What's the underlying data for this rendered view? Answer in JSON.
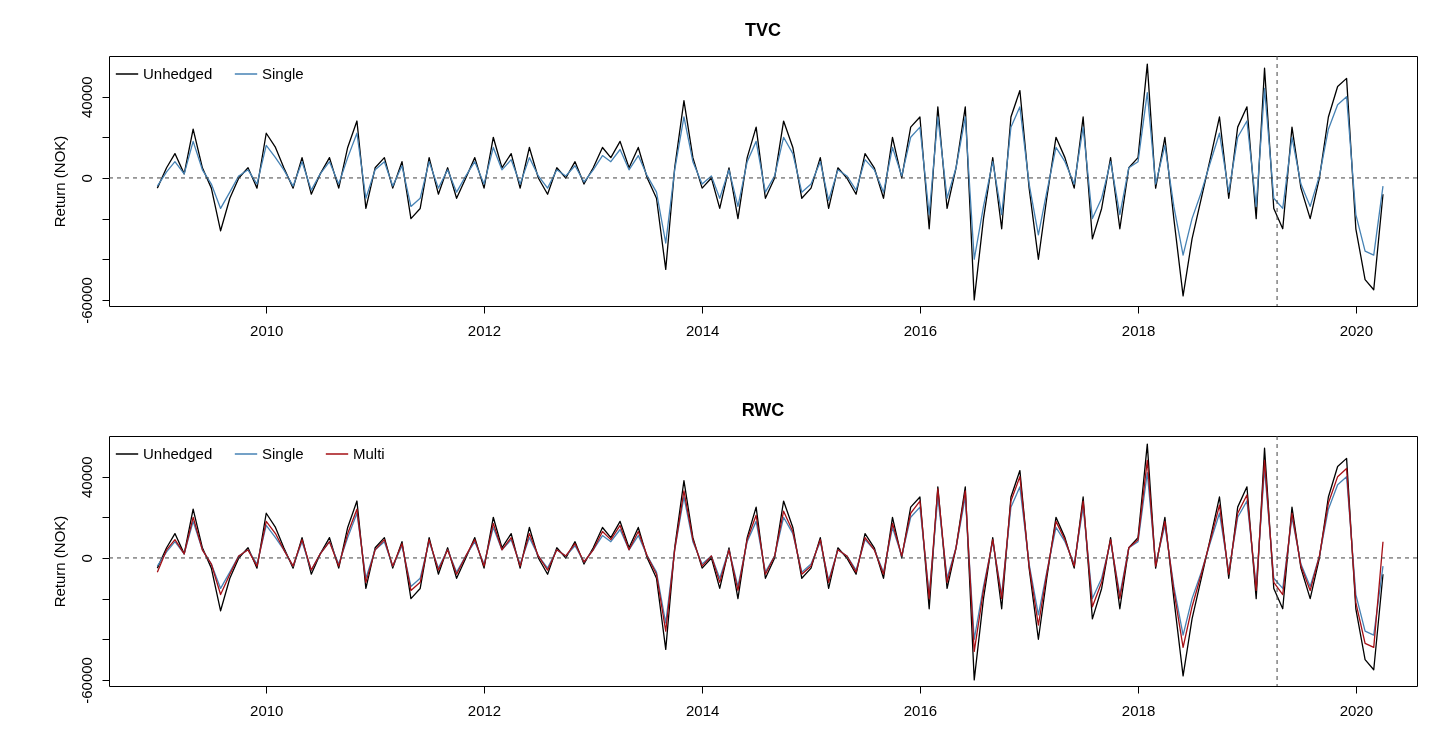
{
  "chart_data": [
    {
      "type": "line",
      "title": "TVC",
      "ylabel": "Return (NOK)",
      "legend": "top left",
      "x": [
        "2009-01",
        "2009-02",
        "2009-03",
        "2009-04",
        "2009-05",
        "2009-06",
        "2009-07",
        "2009-08",
        "2009-09",
        "2009-10",
        "2009-11",
        "2009-12",
        "2010-01",
        "2010-02",
        "2010-03",
        "2010-04",
        "2010-05",
        "2010-06",
        "2010-07",
        "2010-08",
        "2010-09",
        "2010-10",
        "2010-11",
        "2010-12",
        "2011-01",
        "2011-02",
        "2011-03",
        "2011-04",
        "2011-05",
        "2011-06",
        "2011-07",
        "2011-08",
        "2011-09",
        "2011-10",
        "2011-11",
        "2011-12",
        "2012-01",
        "2012-02",
        "2012-03",
        "2012-04",
        "2012-05",
        "2012-06",
        "2012-07",
        "2012-08",
        "2012-09",
        "2012-10",
        "2012-11",
        "2012-12",
        "2013-01",
        "2013-02",
        "2013-03",
        "2013-04",
        "2013-05",
        "2013-06",
        "2013-07",
        "2013-08",
        "2013-09",
        "2013-10",
        "2013-11",
        "2013-12",
        "2014-01",
        "2014-02",
        "2014-03",
        "2014-04",
        "2014-05",
        "2014-06",
        "2014-07",
        "2014-08",
        "2014-09",
        "2014-10",
        "2014-11",
        "2014-12",
        "2015-01",
        "2015-02",
        "2015-03",
        "2015-04",
        "2015-05",
        "2015-06",
        "2015-07",
        "2015-08",
        "2015-09",
        "2015-10",
        "2015-11",
        "2015-12",
        "2016-01",
        "2016-02",
        "2016-03",
        "2016-04",
        "2016-05",
        "2016-06",
        "2016-07",
        "2016-08",
        "2016-09",
        "2016-10",
        "2016-11",
        "2016-12",
        "2017-01",
        "2017-02",
        "2017-03",
        "2017-04",
        "2017-05",
        "2017-06",
        "2017-07",
        "2017-08",
        "2017-09",
        "2017-10",
        "2017-11",
        "2017-12",
        "2018-01",
        "2018-02",
        "2018-03",
        "2018-04",
        "2018-05",
        "2018-06",
        "2018-07",
        "2018-08",
        "2018-09",
        "2018-10",
        "2018-11",
        "2018-12",
        "2019-01",
        "2019-02",
        "2019-03",
        "2019-04",
        "2019-05",
        "2019-06",
        "2019-07",
        "2019-08",
        "2019-09",
        "2019-10",
        "2019-11",
        "2019-12",
        "2020-01",
        "2020-02",
        "2020-03",
        "2020-04"
      ],
      "series": [
        {
          "name": "Unhedged",
          "color": "#000000",
          "values": [
            -5000,
            5000,
            12000,
            2000,
            24000,
            5000,
            -5000,
            -26000,
            -10000,
            0,
            5000,
            -5000,
            22000,
            15000,
            5000,
            -5000,
            10000,
            -8000,
            2000,
            10000,
            -5000,
            15000,
            28000,
            -15000,
            5000,
            10000,
            -5000,
            8000,
            -20000,
            -15000,
            10000,
            -8000,
            5000,
            -10000,
            0,
            10000,
            -5000,
            20000,
            5000,
            12000,
            -5000,
            15000,
            0,
            -8000,
            5000,
            0,
            8000,
            -3000,
            5000,
            15000,
            10000,
            18000,
            5000,
            15000,
            0,
            -10000,
            -45000,
            5000,
            38000,
            10000,
            -5000,
            0,
            -15000,
            5000,
            -20000,
            10000,
            25000,
            -10000,
            0,
            28000,
            15000,
            -10000,
            -5000,
            10000,
            -15000,
            5000,
            0,
            -8000,
            12000,
            5000,
            -10000,
            20000,
            0,
            25000,
            30000,
            -25000,
            35000,
            -15000,
            5000,
            35000,
            -60000,
            -20000,
            10000,
            -25000,
            30000,
            43000,
            -5000,
            -40000,
            -10000,
            20000,
            10000,
            -5000,
            30000,
            -30000,
            -15000,
            10000,
            -25000,
            5000,
            10000,
            56000,
            -5000,
            20000,
            -20000,
            -58000,
            -30000,
            -10000,
            10000,
            30000,
            -10000,
            25000,
            35000,
            -20000,
            54000,
            -15000,
            -25000,
            25000,
            -5000,
            -20000,
            0,
            30000,
            45000,
            49000,
            -25000,
            -50000,
            -55000,
            -8000
          ]
        },
        {
          "name": "Single",
          "color": "#4682b4",
          "values": [
            -4000,
            3000,
            8000,
            2000,
            18000,
            4000,
            -3000,
            -15000,
            -7000,
            1000,
            4000,
            -3000,
            16000,
            10000,
            4000,
            -4000,
            8000,
            -6000,
            2000,
            8000,
            -3000,
            10000,
            22000,
            -10000,
            4000,
            8000,
            -4000,
            6000,
            -14000,
            -10000,
            8000,
            -5000,
            4000,
            -7000,
            1000,
            8000,
            -3000,
            15000,
            4000,
            9000,
            -3000,
            10000,
            1000,
            -5000,
            4000,
            1000,
            6000,
            -2000,
            4000,
            11000,
            8000,
            14000,
            4000,
            11000,
            1000,
            -7000,
            -32000,
            4000,
            30000,
            8000,
            -3000,
            1000,
            -10000,
            4000,
            -14000,
            8000,
            18000,
            -7000,
            1000,
            20000,
            12000,
            -7000,
            -3000,
            8000,
            -11000,
            4000,
            1000,
            -6000,
            9000,
            4000,
            -7000,
            15000,
            1000,
            20000,
            25000,
            -18000,
            30000,
            -10000,
            5000,
            30000,
            -40000,
            -14000,
            8000,
            -18000,
            25000,
            35000,
            -3000,
            -28000,
            -7000,
            15000,
            8000,
            -3000,
            25000,
            -20000,
            -10000,
            8000,
            -18000,
            5000,
            8000,
            42000,
            -3000,
            16000,
            -14000,
            -38000,
            -20000,
            -7000,
            8000,
            22000,
            -7000,
            20000,
            28000,
            -14000,
            44000,
            -10000,
            -15000,
            20000,
            -3000,
            -14000,
            1000,
            24000,
            36000,
            40000,
            -18000,
            -36000,
            -38000,
            -4000
          ]
        }
      ],
      "xlim": [
        "2008-07-23",
        "2020-07-24"
      ],
      "xticks": [
        "2010",
        "2012",
        "2014",
        "2016",
        "2018",
        "2020"
      ],
      "ylim": [
        -63000,
        60000
      ],
      "yticks": [
        -60000,
        {
          "value": -40000,
          "label": null
        },
        {
          "value": -20000,
          "label": null
        },
        0,
        {
          "value": 20000,
          "label": null
        },
        40000
      ],
      "ref_lines": [
        {
          "axis": "y",
          "value": 0,
          "label": null,
          "line_style": "dashed"
        },
        {
          "axis": "x",
          "value": "2019-04-12",
          "label": null,
          "line_style": "dashed"
        }
      ]
    },
    {
      "type": "line",
      "title": "RWC",
      "ylabel": "Return (NOK)",
      "legend": "top left",
      "x": [
        "2009-01",
        "2009-02",
        "2009-03",
        "2009-04",
        "2009-05",
        "2009-06",
        "2009-07",
        "2009-08",
        "2009-09",
        "2009-10",
        "2009-11",
        "2009-12",
        "2010-01",
        "2010-02",
        "2010-03",
        "2010-04",
        "2010-05",
        "2010-06",
        "2010-07",
        "2010-08",
        "2010-09",
        "2010-10",
        "2010-11",
        "2010-12",
        "2011-01",
        "2011-02",
        "2011-03",
        "2011-04",
        "2011-05",
        "2011-06",
        "2011-07",
        "2011-08",
        "2011-09",
        "2011-10",
        "2011-11",
        "2011-12",
        "2012-01",
        "2012-02",
        "2012-03",
        "2012-04",
        "2012-05",
        "2012-06",
        "2012-07",
        "2012-08",
        "2012-09",
        "2012-10",
        "2012-11",
        "2012-12",
        "2013-01",
        "2013-02",
        "2013-03",
        "2013-04",
        "2013-05",
        "2013-06",
        "2013-07",
        "2013-08",
        "2013-09",
        "2013-10",
        "2013-11",
        "2013-12",
        "2014-01",
        "2014-02",
        "2014-03",
        "2014-04",
        "2014-05",
        "2014-06",
        "2014-07",
        "2014-08",
        "2014-09",
        "2014-10",
        "2014-11",
        "2014-12",
        "2015-01",
        "2015-02",
        "2015-03",
        "2015-04",
        "2015-05",
        "2015-06",
        "2015-07",
        "2015-08",
        "2015-09",
        "2015-10",
        "2015-11",
        "2015-12",
        "2016-01",
        "2016-02",
        "2016-03",
        "2016-04",
        "2016-05",
        "2016-06",
        "2016-07",
        "2016-08",
        "2016-09",
        "2016-10",
        "2016-11",
        "2016-12",
        "2017-01",
        "2017-02",
        "2017-03",
        "2017-04",
        "2017-05",
        "2017-06",
        "2017-07",
        "2017-08",
        "2017-09",
        "2017-10",
        "2017-11",
        "2017-12",
        "2018-01",
        "2018-02",
        "2018-03",
        "2018-04",
        "2018-05",
        "2018-06",
        "2018-07",
        "2018-08",
        "2018-09",
        "2018-10",
        "2018-11",
        "2018-12",
        "2019-01",
        "2019-02",
        "2019-03",
        "2019-04",
        "2019-05",
        "2019-06",
        "2019-07",
        "2019-08",
        "2019-09",
        "2019-10",
        "2019-11",
        "2019-12",
        "2020-01",
        "2020-02",
        "2020-03",
        "2020-04"
      ],
      "series": [
        {
          "name": "Unhedged",
          "color": "#000000",
          "values": [
            -5000,
            5000,
            12000,
            2000,
            24000,
            5000,
            -5000,
            -26000,
            -10000,
            0,
            5000,
            -5000,
            22000,
            15000,
            5000,
            -5000,
            10000,
            -8000,
            2000,
            10000,
            -5000,
            15000,
            28000,
            -15000,
            5000,
            10000,
            -5000,
            8000,
            -20000,
            -15000,
            10000,
            -8000,
            5000,
            -10000,
            0,
            10000,
            -5000,
            20000,
            5000,
            12000,
            -5000,
            15000,
            0,
            -8000,
            5000,
            0,
            8000,
            -3000,
            5000,
            15000,
            10000,
            18000,
            5000,
            15000,
            0,
            -10000,
            -45000,
            5000,
            38000,
            10000,
            -5000,
            0,
            -15000,
            5000,
            -20000,
            10000,
            25000,
            -10000,
            0,
            28000,
            15000,
            -10000,
            -5000,
            10000,
            -15000,
            5000,
            0,
            -8000,
            12000,
            5000,
            -10000,
            20000,
            0,
            25000,
            30000,
            -25000,
            35000,
            -15000,
            5000,
            35000,
            -60000,
            -20000,
            10000,
            -25000,
            30000,
            43000,
            -5000,
            -40000,
            -10000,
            20000,
            10000,
            -5000,
            30000,
            -30000,
            -15000,
            10000,
            -25000,
            5000,
            10000,
            56000,
            -5000,
            20000,
            -20000,
            -58000,
            -30000,
            -10000,
            10000,
            30000,
            -10000,
            25000,
            35000,
            -20000,
            54000,
            -15000,
            -25000,
            25000,
            -5000,
            -20000,
            0,
            30000,
            45000,
            49000,
            -25000,
            -50000,
            -55000,
            -8000
          ]
        },
        {
          "name": "Single",
          "color": "#4682b4",
          "values": [
            -4000,
            3000,
            8000,
            2000,
            18000,
            4000,
            -3000,
            -15000,
            -7000,
            1000,
            4000,
            -3000,
            16000,
            10000,
            4000,
            -4000,
            8000,
            -6000,
            2000,
            8000,
            -3000,
            10000,
            22000,
            -10000,
            4000,
            8000,
            -4000,
            6000,
            -14000,
            -10000,
            8000,
            -5000,
            4000,
            -7000,
            1000,
            8000,
            -3000,
            15000,
            4000,
            9000,
            -3000,
            10000,
            1000,
            -5000,
            4000,
            1000,
            6000,
            -2000,
            4000,
            11000,
            8000,
            14000,
            4000,
            11000,
            1000,
            -7000,
            -32000,
            4000,
            30000,
            8000,
            -3000,
            1000,
            -10000,
            4000,
            -14000,
            8000,
            18000,
            -7000,
            1000,
            20000,
            12000,
            -7000,
            -3000,
            8000,
            -11000,
            4000,
            1000,
            -6000,
            9000,
            4000,
            -7000,
            15000,
            1000,
            20000,
            25000,
            -18000,
            30000,
            -10000,
            5000,
            30000,
            -40000,
            -14000,
            8000,
            -18000,
            25000,
            35000,
            -3000,
            -28000,
            -7000,
            15000,
            8000,
            -3000,
            25000,
            -20000,
            -10000,
            8000,
            -18000,
            5000,
            8000,
            42000,
            -3000,
            16000,
            -14000,
            -38000,
            -20000,
            -7000,
            8000,
            22000,
            -7000,
            20000,
            28000,
            -14000,
            44000,
            -10000,
            -15000,
            20000,
            -3000,
            -14000,
            1000,
            24000,
            36000,
            40000,
            -18000,
            -36000,
            -38000,
            -4000
          ]
        },
        {
          "name": "Multi",
          "color": "#a50f15",
          "values": [
            -7000,
            4000,
            9000,
            2000,
            20000,
            4000,
            -3000,
            -18000,
            -8000,
            1000,
            4000,
            -4000,
            18000,
            12000,
            4000,
            -4000,
            9000,
            -6000,
            2000,
            8000,
            -4000,
            12000,
            24000,
            -12000,
            4000,
            9000,
            -4000,
            7000,
            -16000,
            -12000,
            9000,
            -6000,
            4000,
            -8000,
            1000,
            9000,
            -4000,
            17000,
            4000,
            10000,
            -4000,
            12000,
            1000,
            -6000,
            4000,
            1000,
            7000,
            -2000,
            4000,
            13000,
            9000,
            16000,
            4000,
            13000,
            1000,
            -8000,
            -36000,
            4000,
            33000,
            9000,
            -4000,
            1000,
            -12000,
            4000,
            -16000,
            9000,
            21000,
            -8000,
            1000,
            23000,
            13000,
            -8000,
            -4000,
            9000,
            -12000,
            4000,
            1000,
            -7000,
            10000,
            4000,
            -8000,
            17000,
            1000,
            22000,
            28000,
            -20000,
            34000,
            -12000,
            5000,
            33000,
            -46000,
            -16000,
            9000,
            -20000,
            28000,
            40000,
            -4000,
            -33000,
            -8000,
            18000,
            9000,
            -4000,
            28000,
            -24000,
            -12000,
            9000,
            -20000,
            5000,
            9000,
            48000,
            -4000,
            18000,
            -16000,
            -44000,
            -24000,
            -8000,
            9000,
            26000,
            -8000,
            22000,
            31000,
            -16000,
            48000,
            -12000,
            -18000,
            22000,
            -4000,
            -16000,
            1000,
            27000,
            40000,
            44000,
            -22000,
            -42000,
            -44000,
            8000
          ]
        }
      ],
      "xlim": [
        "2008-07-23",
        "2020-07-24"
      ],
      "xticks": [
        "2010",
        "2012",
        "2014",
        "2016",
        "2018",
        "2020"
      ],
      "ylim": [
        -63000,
        60000
      ],
      "yticks": [
        -60000,
        {
          "value": -40000,
          "label": null
        },
        {
          "value": -20000,
          "label": null
        },
        0,
        {
          "value": 20000,
          "label": null
        },
        40000
      ],
      "ref_lines": [
        {
          "axis": "y",
          "value": 0,
          "label": null,
          "line_style": "dashed"
        },
        {
          "axis": "x",
          "value": "2019-04-12",
          "label": null,
          "line_style": "dashed"
        }
      ]
    }
  ]
}
